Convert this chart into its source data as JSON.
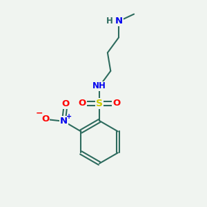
{
  "background_color": "#f0f4f0",
  "bond_color": "#2d6b5e",
  "atom_colors": {
    "C": "#2d6b5e",
    "N": "#0000ee",
    "O": "#ff0000",
    "S": "#cccc00",
    "H": "#2d6b5e"
  },
  "figsize": [
    3.0,
    3.0
  ],
  "dpi": 100
}
